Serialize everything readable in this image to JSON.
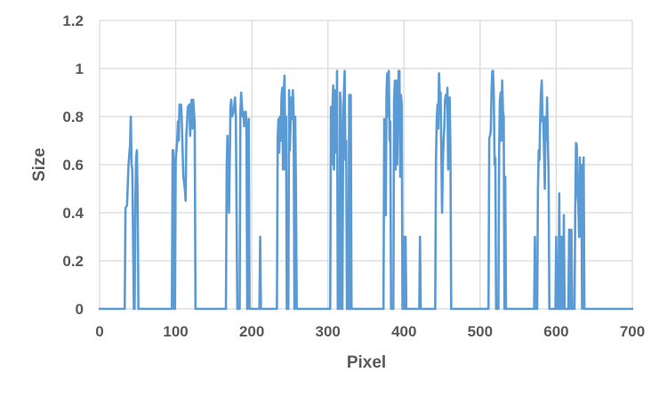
{
  "chart_data": {
    "type": "line",
    "title": "",
    "xlabel": "Pixel",
    "ylabel": "Size",
    "xlim": [
      0,
      700
    ],
    "ylim": [
      0,
      1.2
    ],
    "x_ticks": [
      "0",
      "100",
      "200",
      "300",
      "400",
      "500",
      "600",
      "700"
    ],
    "y_ticks": [
      "0",
      "0.2",
      "0.4",
      "0.6",
      "0.8",
      "1",
      "1.2"
    ],
    "x_tick_values": [
      0,
      100,
      200,
      300,
      400,
      500,
      600,
      700
    ],
    "y_tick_values": [
      0,
      0.2,
      0.4,
      0.6,
      0.8,
      1,
      1.2
    ],
    "grid": "both",
    "legend": "none",
    "series": [
      {
        "color": "#5b9bd5",
        "points": [
          [
            0,
            0
          ],
          [
            33,
            0
          ],
          [
            34,
            0.42
          ],
          [
            36,
            0.43
          ],
          [
            38,
            0.6
          ],
          [
            40,
            0.68
          ],
          [
            41,
            0.8
          ],
          [
            42,
            0.6
          ],
          [
            43,
            0.58
          ],
          [
            45,
            0
          ],
          [
            46,
            0
          ],
          [
            47,
            0.45
          ],
          [
            48,
            0.63
          ],
          [
            49,
            0.66
          ],
          [
            50,
            0.45
          ],
          [
            51,
            0
          ],
          [
            95,
            0
          ],
          [
            96,
            0.66
          ],
          [
            97,
            0.66
          ],
          [
            98,
            0
          ],
          [
            99,
            0
          ],
          [
            100,
            0.62
          ],
          [
            102,
            0.7
          ],
          [
            103,
            0.78
          ],
          [
            104,
            0.7
          ],
          [
            105,
            0.85
          ],
          [
            107,
            0.85
          ],
          [
            108,
            0.78
          ],
          [
            110,
            0.55
          ],
          [
            112,
            0.5
          ],
          [
            113,
            0.45
          ],
          [
            114,
            0.72
          ],
          [
            116,
            0.84
          ],
          [
            118,
            0.85
          ],
          [
            119,
            0.72
          ],
          [
            120,
            0.84
          ],
          [
            121,
            0.87
          ],
          [
            122,
            0.75
          ],
          [
            123,
            0.87
          ],
          [
            125,
            0.77
          ],
          [
            126,
            0
          ],
          [
            166,
            0
          ],
          [
            167,
            0.59
          ],
          [
            168,
            0.72
          ],
          [
            170,
            0.4
          ],
          [
            172,
            0.84
          ],
          [
            173,
            0.87
          ],
          [
            174,
            0.8
          ],
          [
            176,
            0.82
          ],
          [
            178,
            0.88
          ],
          [
            179,
            0.8
          ],
          [
            180,
            0.4
          ],
          [
            181,
            0
          ],
          [
            184,
            0
          ],
          [
            185,
            0.82
          ],
          [
            186,
            0.9
          ],
          [
            188,
            0.8
          ],
          [
            189,
            0.82
          ],
          [
            190,
            0.76
          ],
          [
            192,
            0.82
          ],
          [
            193,
            0.77
          ],
          [
            194,
            0
          ],
          [
            195,
            0.3
          ],
          [
            196,
            0.79
          ],
          [
            197,
            0
          ],
          [
            210,
            0
          ],
          [
            211,
            0.3
          ],
          [
            212,
            0
          ],
          [
            233,
            0
          ],
          [
            234,
            0.71
          ],
          [
            235,
            0.79
          ],
          [
            236,
            0.65
          ],
          [
            237,
            0.8
          ],
          [
            238,
            0.7
          ],
          [
            239,
            0.88
          ],
          [
            240,
            0.92
          ],
          [
            241,
            0.58
          ],
          [
            242,
            0.9
          ],
          [
            243,
            0.97
          ],
          [
            244,
            0.58
          ],
          [
            245,
            0.8
          ],
          [
            246,
            0
          ],
          [
            248,
            0
          ],
          [
            249,
            0.91
          ],
          [
            250,
            0.66
          ],
          [
            252,
            0.88
          ],
          [
            253,
            0.79
          ],
          [
            254,
            0.91
          ],
          [
            255,
            0.8
          ],
          [
            256,
            0
          ],
          [
            257,
            0.8
          ],
          [
            258,
            0.5
          ],
          [
            259,
            0
          ],
          [
            303,
            0
          ],
          [
            304,
            0.84
          ],
          [
            305,
            0.6
          ],
          [
            306,
            0.84
          ],
          [
            307,
            0.93
          ],
          [
            308,
            0.58
          ],
          [
            309,
            0.89
          ],
          [
            310,
            0.91
          ],
          [
            311,
            0.65
          ],
          [
            312,
            0.99
          ],
          [
            313,
            0
          ],
          [
            315,
            0
          ],
          [
            316,
            0.9
          ],
          [
            317,
            0.85
          ],
          [
            318,
            0
          ],
          [
            319,
            0
          ],
          [
            320,
            0.75
          ],
          [
            321,
            0.9
          ],
          [
            322,
            0.99
          ],
          [
            323,
            0.62
          ],
          [
            324,
            0.7
          ],
          [
            325,
            0
          ],
          [
            327,
            0
          ],
          [
            328,
            0.89
          ],
          [
            329,
            0
          ]
        ]
      },
      {
        "color": "#5b9bd5",
        "points": [
          [
            329,
            0
          ],
          [
            330,
            0.89
          ],
          [
            331,
            0
          ],
          [
            373,
            0
          ],
          [
            374,
            0.79
          ],
          [
            375,
            0.6
          ],
          [
            376,
            0.39
          ],
          [
            377,
            0.9
          ],
          [
            378,
            0.98
          ],
          [
            379,
            0.8
          ],
          [
            380,
            0.99
          ],
          [
            381,
            0.7
          ],
          [
            382,
            0.78
          ],
          [
            383,
            0
          ],
          [
            386,
            0
          ],
          [
            387,
            0.87
          ],
          [
            388,
            0.95
          ],
          [
            389,
            0.58
          ],
          [
            390,
            0.95
          ],
          [
            391,
            0.6
          ],
          [
            392,
            0.85
          ],
          [
            393,
            0.99
          ],
          [
            394,
            0.99
          ],
          [
            395,
            0.55
          ],
          [
            396,
            0.89
          ],
          [
            397,
            0.85
          ],
          [
            398,
            0
          ],
          [
            399,
            0
          ],
          [
            400,
            0.3
          ],
          [
            401,
            0
          ],
          [
            402,
            0.3
          ],
          [
            403,
            0
          ],
          [
            420,
            0
          ],
          [
            421,
            0.3
          ],
          [
            422,
            0
          ],
          [
            441,
            0
          ],
          [
            442,
            0.62
          ],
          [
            443,
            0.78
          ],
          [
            444,
            0.85
          ],
          [
            445,
            0.75
          ],
          [
            446,
            0.98
          ],
          [
            447,
            0.89
          ],
          [
            448,
            0.9
          ],
          [
            449,
            0.66
          ],
          [
            450,
            0.4
          ],
          [
            451,
            0.6
          ],
          [
            452,
            0.7
          ],
          [
            453,
            0.76
          ],
          [
            454,
            0.87
          ],
          [
            455,
            0.89
          ],
          [
            456,
            0.85
          ],
          [
            457,
            0.92
          ],
          [
            458,
            0.58
          ],
          [
            459,
            0.72
          ],
          [
            460,
            0.88
          ],
          [
            461,
            0.66
          ],
          [
            462,
            0
          ],
          [
            511,
            0
          ],
          [
            512,
            0.71
          ],
          [
            513,
            0.72
          ],
          [
            514,
            0.74
          ],
          [
            515,
            0.9
          ],
          [
            516,
            0.99
          ],
          [
            517,
            0.99
          ],
          [
            518,
            0.88
          ],
          [
            519,
            0.6
          ],
          [
            520,
            0.63
          ],
          [
            521,
            0
          ],
          [
            524,
            0
          ],
          [
            525,
            0.66
          ],
          [
            526,
            0.87
          ],
          [
            527,
            0.9
          ],
          [
            528,
            0.7
          ],
          [
            529,
            0.95
          ],
          [
            530,
            0.82
          ],
          [
            531,
            0.8
          ],
          [
            532,
            0
          ],
          [
            533,
            0.55
          ],
          [
            534,
            0
          ],
          [
            571,
            0
          ],
          [
            572,
            0.3
          ],
          [
            573,
            0
          ],
          [
            575,
            0
          ],
          [
            576,
            0.5
          ],
          [
            577,
            0.66
          ],
          [
            578,
            0.62
          ],
          [
            579,
            0.8
          ],
          [
            580,
            0.9
          ],
          [
            581,
            0.95
          ],
          [
            582,
            0.78
          ],
          [
            583,
            0.8
          ],
          [
            584,
            0.66
          ],
          [
            585,
            0.5
          ],
          [
            586,
            0.8
          ],
          [
            587,
            0.7
          ],
          [
            588,
            0.88
          ],
          [
            589,
            0.7
          ],
          [
            590,
            0.56
          ],
          [
            591,
            0
          ],
          [
            599,
            0
          ],
          [
            600,
            0.3
          ],
          [
            601,
            0
          ],
          [
            603,
            0
          ],
          [
            604,
            0.48
          ],
          [
            605,
            0
          ],
          [
            606,
            0.3
          ],
          [
            607,
            0
          ],
          [
            608,
            0.3
          ],
          [
            609,
            0
          ],
          [
            610,
            0.39
          ],
          [
            611,
            0
          ],
          [
            616,
            0
          ],
          [
            617,
            0.33
          ],
          [
            618,
            0
          ],
          [
            619,
            0
          ],
          [
            620,
            0.33
          ],
          [
            621,
            0
          ],
          [
            624,
            0
          ],
          [
            625,
            0.4
          ],
          [
            626,
            0.69
          ],
          [
            627,
            0.68
          ],
          [
            628,
            0.48
          ],
          [
            629,
            0.44
          ],
          [
            630,
            0.3
          ],
          [
            631,
            0.63
          ],
          [
            632,
            0.3
          ],
          [
            633,
            0.6
          ],
          [
            634,
            0
          ],
          [
            635,
            0.3
          ],
          [
            636,
            0.63
          ],
          [
            637,
            0
          ],
          [
            700,
            0
          ]
        ]
      }
    ]
  }
}
